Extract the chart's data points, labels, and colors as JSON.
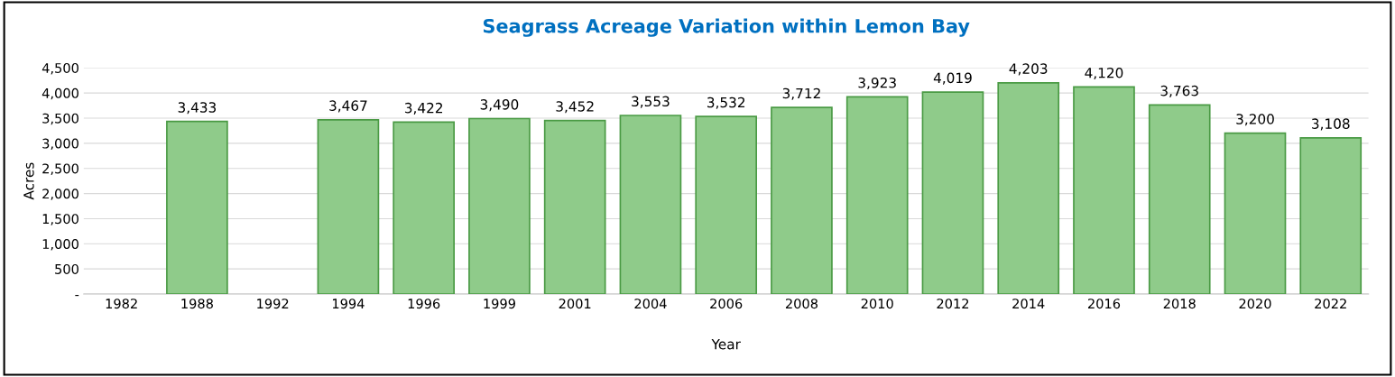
{
  "chart_data": {
    "type": "bar",
    "title": "Seagrass Acreage Variation within Lemon Bay",
    "xlabel": "Year",
    "ylabel": "Acres",
    "categories": [
      "1982",
      "1988",
      "1992",
      "1994",
      "1996",
      "1999",
      "2001",
      "2004",
      "2006",
      "2008",
      "2010",
      "2012",
      "2014",
      "2016",
      "2018",
      "2020",
      "2022"
    ],
    "values": [
      null,
      3433,
      null,
      3467,
      3422,
      3490,
      3452,
      3553,
      3532,
      3712,
      3923,
      4019,
      4203,
      4120,
      3763,
      3200,
      3108
    ],
    "value_labels": [
      null,
      "3,433",
      null,
      "3,467",
      "3,422",
      "3,490",
      "3,452",
      "3,553",
      "3,532",
      "3,712",
      "3,923",
      "4,019",
      "4,203",
      "4,120",
      "3,763",
      "3,200",
      "3,108"
    ],
    "color": "#8fcb8a",
    "ylim": [
      0,
      4500
    ],
    "yticks": [
      {
        "value": 0,
        "label": "-"
      },
      500,
      {
        "value": 1000,
        "label": "1,000"
      },
      {
        "value": 1500,
        "label": "1,500"
      },
      {
        "value": 2000,
        "label": "2,000"
      },
      {
        "value": 2500,
        "label": "2,500"
      },
      {
        "value": 3000,
        "label": "3,000"
      },
      {
        "value": 3500,
        "label": "3,500"
      },
      {
        "value": 4000,
        "label": "4,000"
      },
      {
        "value": 4500,
        "label": "4,500"
      }
    ],
    "grid": "y",
    "legend": false
  }
}
